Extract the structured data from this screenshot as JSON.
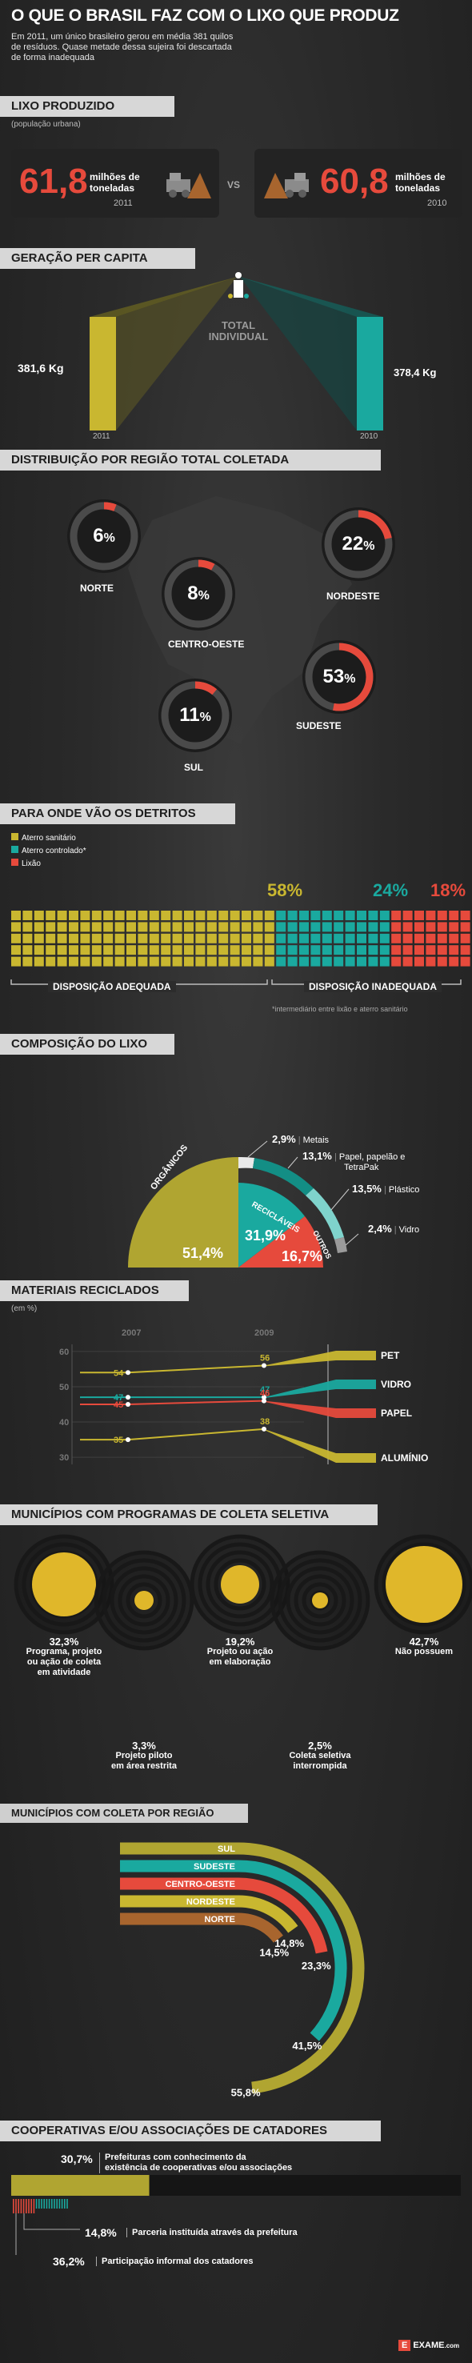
{
  "header": {
    "title": "O QUE O BRASIL FAZ COM O LIXO QUE PRODUZ",
    "intro_lines": [
      "Em 2011, um único brasileiro gerou em média 381 quilos",
      "de resíduos. Quase metade dessa sujeira foi descartada",
      "de forma inadequada"
    ]
  },
  "lixo_produzido": {
    "title": "LIXO PRODUZIDO",
    "subtitle": "(população urbana)",
    "vs": "VS",
    "items": [
      {
        "value": "61,8",
        "unit_line1": "milhões de",
        "unit_line2": "toneladas",
        "year": "2011"
      },
      {
        "value": "60,8",
        "unit_line1": "milhões de",
        "unit_line2": "toneladas",
        "year": "2010"
      }
    ]
  },
  "geracao": {
    "title": "GERAÇÃO PER CAPITA",
    "center_label_line1": "TOTAL",
    "center_label_line2": "INDIVIDUAL",
    "left_value": "381,6 Kg",
    "left_year": "2011",
    "right_value": "378,4 Kg",
    "right_year": "2010"
  },
  "regiao": {
    "title": "DISTRIBUIÇÃO POR REGIÃO TOTAL COLETADA",
    "items": [
      {
        "name": "NORTE",
        "value": 6,
        "label": "6"
      },
      {
        "name": "NORDESTE",
        "value": 22,
        "label": "22"
      },
      {
        "name": "CENTRO-OESTE",
        "value": 8,
        "label": "8"
      },
      {
        "name": "SUDESTE",
        "value": 53,
        "label": "53"
      },
      {
        "name": "SUL",
        "value": 11,
        "label": "11"
      }
    ],
    "pct": "%"
  },
  "detritos": {
    "title": "PARA ONDE VÃO OS DETRITOS",
    "legend": [
      "Aterro sanitário",
      "Aterro controlado*",
      "Lixão"
    ],
    "percent_labels": [
      "58%",
      "24%",
      "18%"
    ],
    "label_adequada": "DISPOSIÇÃO ADEQUADA",
    "label_inadequada": "DISPOSIÇÃO INADEQUADA",
    "footnote": "*intermediário entre lixão e aterro sanitário"
  },
  "composicao": {
    "title": "COMPOSIÇÃO DO LIXO",
    "organicos_label": "ORGÂNICOS",
    "organicos_value": "51,4%",
    "reciclaveis_label": "RECICLÁVEIS",
    "reciclaveis_value": "31,9%",
    "outros_label": "OUTROS",
    "outros_value": "16,7%",
    "breakdown": [
      {
        "value": "2,9%",
        "line1": "Metais",
        "line2": ""
      },
      {
        "value": "13,1%",
        "line1": "Papel, papelão e",
        "line2": "TetraPak"
      },
      {
        "value": "13,5%",
        "line1": "Plástico",
        "line2": ""
      },
      {
        "value": "2,4%",
        "line1": "Vidro",
        "line2": ""
      }
    ]
  },
  "reciclados": {
    "title": "MATERIAIS RECICLADOS",
    "unit": "(em %)",
    "year1": "2007",
    "year2": "2009",
    "ticks": [
      "60",
      "50",
      "40",
      "30"
    ]
  },
  "chart_data": {
    "type": "line",
    "title": "MATERIAIS RECICLADOS",
    "x": [
      "2007",
      "2009"
    ],
    "ylabel": "(em %)",
    "yticks": [
      60,
      50,
      40,
      30
    ],
    "series": [
      {
        "name": "PET",
        "values": [
          54,
          56
        ]
      },
      {
        "name": "VIDRO",
        "values": [
          47,
          47
        ]
      },
      {
        "name": "PAPEL",
        "values": [
          45,
          46
        ]
      },
      {
        "name": "ALUMÍNIO",
        "values": [
          35,
          38
        ]
      }
    ]
  },
  "municipios": {
    "title": "MUNICÍPIOS COM PROGRAMAS DE COLETA SELETIVA",
    "items": [
      {
        "value": "32,3%",
        "lines": [
          "Programa, projeto",
          "ou ação de coleta",
          "em atividade"
        ]
      },
      {
        "value": "3,3%",
        "lines": [
          "Projeto piloto",
          "em área restrita"
        ]
      },
      {
        "value": "19,2%",
        "lines": [
          "Projeto ou ação",
          "em elaboração"
        ]
      },
      {
        "value": "2,5%",
        "lines": [
          "Coleta seletiva",
          "interrompida"
        ]
      },
      {
        "value": "42,7%",
        "lines": [
          "Não possuem"
        ]
      }
    ]
  },
  "coleta_regiao": {
    "title": "MUNICÍPIOS COM COLETA POR REGIÃO",
    "items": [
      {
        "name": "SUL",
        "value": "55,8%"
      },
      {
        "name": "SUDESTE",
        "value": "41,5%"
      },
      {
        "name": "CENTRO-OESTE",
        "value": "23,3%"
      },
      {
        "name": "NORDESTE",
        "value": "14,8%"
      },
      {
        "name": "NORTE",
        "value": "14,5%"
      }
    ]
  },
  "cooperativas": {
    "title": "COOPERATIVAS E/OU ASSOCIAÇÕES DE CATADORES",
    "items": [
      {
        "value": "30,7%",
        "line1": "Prefeituras com conhecimento da",
        "line2": "existência de cooperativas e/ou associações"
      },
      {
        "value": "14,8%",
        "line1": "Parceria instituída através da prefeitura",
        "line2": ""
      },
      {
        "value": "36,2%",
        "line1": "Participação informal dos catadores",
        "line2": ""
      }
    ]
  },
  "footer": {
    "logo_letter": "E",
    "logo_text": "EXAME",
    "logo_suffix": ".com"
  },
  "colors": {
    "yellow": "#c9b730",
    "teal": "#1aa99f",
    "red": "#e64a3c",
    "orange": "#a8652e",
    "panel": "#232323"
  }
}
